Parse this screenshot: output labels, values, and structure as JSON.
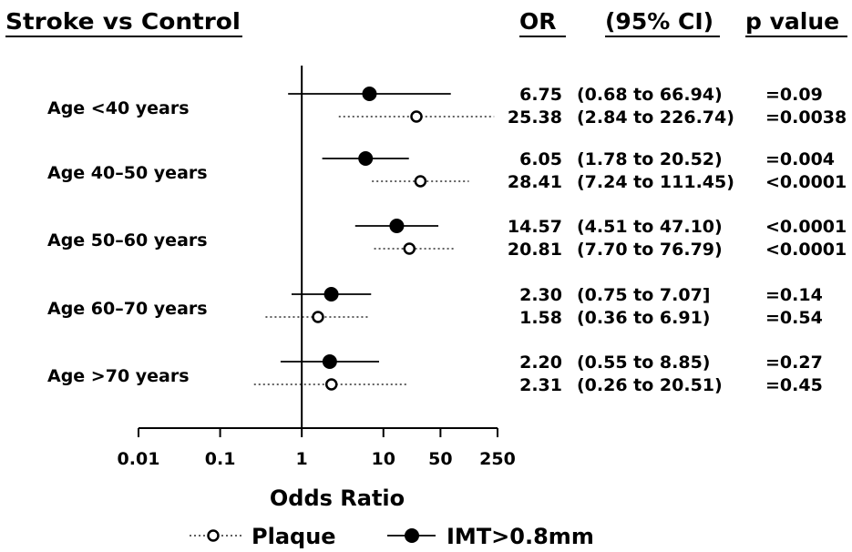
{
  "headers": {
    "title": "Stroke vs Control",
    "or": "OR",
    "ci": "(95% CI)",
    "p": "p value"
  },
  "chart_data": {
    "type": "forest",
    "scale": "log",
    "xlabel": "Odds Ratio",
    "xlim": [
      0.01,
      250
    ],
    "ticks": [
      0.01,
      0.1,
      1,
      10,
      50,
      250
    ],
    "tick_labels": [
      "0.01",
      "0.1",
      "1",
      "10",
      "50",
      "250"
    ],
    "reference_line": 1,
    "series": [
      {
        "name": "Plaque",
        "style": "dotted",
        "marker": "open-circle"
      },
      {
        "name": "IMT>0.8mm",
        "style": "solid",
        "marker": "filled-circle"
      }
    ],
    "groups": [
      {
        "label": "Age <40 years",
        "rows": [
          {
            "series": "IMT>0.8mm",
            "or": 6.75,
            "lo": 0.68,
            "hi": 66.94,
            "or_text": "6.75",
            "ci_text": "(0.68 to 66.94)",
            "p_text": "=0.09"
          },
          {
            "series": "Plaque",
            "or": 25.38,
            "lo": 2.84,
            "hi": 226.74,
            "or_text": "25.38",
            "ci_text": "(2.84 to 226.74)",
            "p_text": "=0.0038"
          }
        ]
      },
      {
        "label": "Age 40–50 years",
        "rows": [
          {
            "series": "IMT>0.8mm",
            "or": 6.05,
            "lo": 1.78,
            "hi": 20.52,
            "or_text": "6.05",
            "ci_text": "(1.78 to 20.52)",
            "p_text": "=0.004"
          },
          {
            "series": "Plaque",
            "or": 28.41,
            "lo": 7.24,
            "hi": 111.45,
            "or_text": "28.41",
            "ci_text": "(7.24 to 111.45)",
            "p_text": "<0.0001"
          }
        ]
      },
      {
        "label": "Age 50–60 years",
        "rows": [
          {
            "series": "IMT>0.8mm",
            "or": 14.57,
            "lo": 4.51,
            "hi": 47.1,
            "or_text": "14.57",
            "ci_text": "(4.51 to 47.10)",
            "p_text": "<0.0001"
          },
          {
            "series": "Plaque",
            "or": 20.81,
            "lo": 7.7,
            "hi": 76.79,
            "or_text": "20.81",
            "ci_text": "(7.70 to 76.79)",
            "p_text": "<0.0001"
          }
        ]
      },
      {
        "label": "Age 60–70 years",
        "rows": [
          {
            "series": "IMT>0.8mm",
            "or": 2.3,
            "lo": 0.75,
            "hi": 7.07,
            "or_text": "2.30",
            "ci_text": "(0.75 to 7.07]",
            "p_text": "=0.14"
          },
          {
            "series": "Plaque",
            "or": 1.58,
            "lo": 0.36,
            "hi": 6.91,
            "or_text": "1.58",
            "ci_text": "(0.36 to 6.91)",
            "p_text": "=0.54"
          }
        ]
      },
      {
        "label": "Age >70 years",
        "rows": [
          {
            "series": "IMT>0.8mm",
            "or": 2.2,
            "lo": 0.55,
            "hi": 8.85,
            "or_text": "2.20",
            "ci_text": "(0.55 to 8.85)",
            "p_text": "=0.27"
          },
          {
            "series": "Plaque",
            "or": 2.31,
            "lo": 0.26,
            "hi": 20.51,
            "or_text": "2.31",
            "ci_text": "(0.26 to 20.51)",
            "p_text": "=0.45"
          }
        ]
      }
    ]
  }
}
